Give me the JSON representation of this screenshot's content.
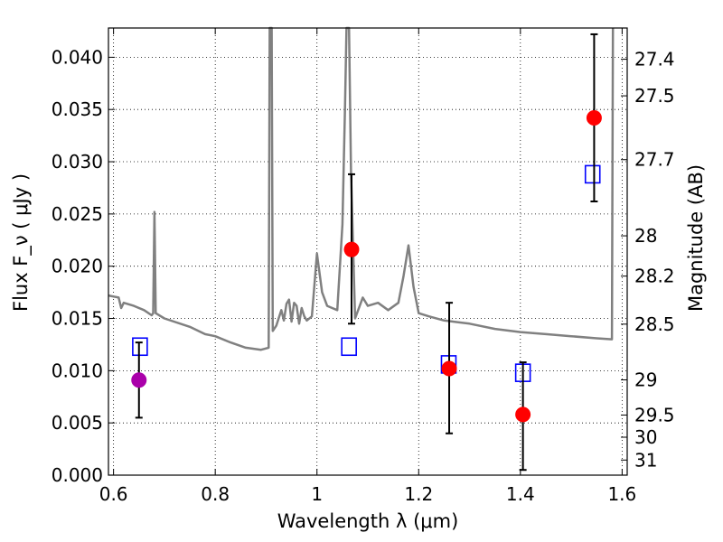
{
  "chart_data": {
    "type": "scatter",
    "title": "",
    "xlabel": "Wavelength  λ (μm)",
    "ylabel": "Flux  F_ν  ( μJy )",
    "y2label": "Magnitude (AB)",
    "xlim": [
      0.59,
      1.61
    ],
    "ylim": [
      0.0,
      0.0428
    ],
    "grid": true,
    "xticks": [
      0.6,
      0.8,
      1.0,
      1.2,
      1.4,
      1.6
    ],
    "xtick_labels": [
      "0.6",
      "0.8",
      "1",
      "1.2",
      "1.4",
      "1.6"
    ],
    "yticks": [
      0.0,
      0.005,
      0.01,
      0.015,
      0.02,
      0.025,
      0.03,
      0.035,
      0.04
    ],
    "ytick_labels": [
      "0.000",
      "0.005",
      "0.010",
      "0.015",
      "0.020",
      "0.025",
      "0.030",
      "0.035",
      "0.040"
    ],
    "mag_ticks": [
      27.4,
      27.5,
      27.7,
      28,
      28.2,
      28.5,
      29,
      29.5,
      30,
      31
    ],
    "mag_tick_labels": [
      "27.4",
      "27.5",
      "27.7",
      "28",
      "28.2",
      "28.5",
      "29",
      "29.5",
      "30",
      "31"
    ],
    "series": [
      {
        "type": "line",
        "color": "#808080",
        "points": [
          [
            0.59,
            0.0172
          ],
          [
            0.61,
            0.017
          ],
          [
            0.615,
            0.016
          ],
          [
            0.62,
            0.0165
          ],
          [
            0.64,
            0.0162
          ],
          [
            0.66,
            0.0158
          ],
          [
            0.675,
            0.0153
          ],
          [
            0.678,
            0.0155
          ],
          [
            0.6805,
            0.0252
          ],
          [
            0.683,
            0.0155
          ],
          [
            0.7,
            0.015
          ],
          [
            0.75,
            0.0142
          ],
          [
            0.78,
            0.0135
          ],
          [
            0.8,
            0.0133
          ],
          [
            0.83,
            0.0127
          ],
          [
            0.86,
            0.0122
          ],
          [
            0.89,
            0.012
          ],
          [
            0.905,
            0.0122
          ],
          [
            0.907,
            0.0428
          ],
          [
            0.911,
            0.0428
          ],
          [
            0.913,
            0.0138
          ],
          [
            0.92,
            0.0143
          ],
          [
            0.93,
            0.0158
          ],
          [
            0.935,
            0.0148
          ],
          [
            0.94,
            0.0164
          ],
          [
            0.945,
            0.0168
          ],
          [
            0.95,
            0.0147
          ],
          [
            0.955,
            0.0165
          ],
          [
            0.96,
            0.0162
          ],
          [
            0.965,
            0.0145
          ],
          [
            0.97,
            0.016
          ],
          [
            0.975,
            0.0152
          ],
          [
            0.98,
            0.0148
          ],
          [
            0.99,
            0.0152
          ],
          [
            1.0,
            0.0212
          ],
          [
            1.01,
            0.0175
          ],
          [
            1.02,
            0.0162
          ],
          [
            1.03,
            0.016
          ],
          [
            1.04,
            0.0158
          ],
          [
            1.05,
            0.024
          ],
          [
            1.055,
            0.035
          ],
          [
            1.058,
            0.0428
          ],
          [
            1.063,
            0.0428
          ],
          [
            1.067,
            0.029
          ],
          [
            1.075,
            0.015
          ],
          [
            1.09,
            0.017
          ],
          [
            1.1,
            0.0162
          ],
          [
            1.12,
            0.0165
          ],
          [
            1.14,
            0.0158
          ],
          [
            1.16,
            0.0165
          ],
          [
            1.17,
            0.019
          ],
          [
            1.18,
            0.022
          ],
          [
            1.19,
            0.018
          ],
          [
            1.2,
            0.0155
          ],
          [
            1.22,
            0.0152
          ],
          [
            1.25,
            0.0148
          ],
          [
            1.3,
            0.0145
          ],
          [
            1.35,
            0.014
          ],
          [
            1.4,
            0.0137
          ],
          [
            1.45,
            0.0135
          ],
          [
            1.5,
            0.0133
          ],
          [
            1.55,
            0.0131
          ],
          [
            1.58,
            0.013
          ],
          [
            1.582,
            0.0428
          ]
        ]
      },
      {
        "type": "points",
        "marker": "square",
        "color": "#0000ff",
        "points": [
          [
            0.652,
            0.0123
          ],
          [
            1.063,
            0.0123
          ],
          [
            1.259,
            0.0106
          ],
          [
            1.405,
            0.0098
          ],
          [
            1.542,
            0.0288
          ]
        ]
      },
      {
        "type": "points",
        "marker": "circle",
        "color": "#ff0000",
        "points": [
          [
            1.068,
            0.0216,
            0.0145,
            0.0288
          ],
          [
            1.26,
            0.0102,
            0.004,
            0.0165
          ],
          [
            1.405,
            0.0058,
            0.0005,
            0.0108
          ],
          [
            1.545,
            0.0342,
            0.0262,
            0.0422
          ]
        ]
      },
      {
        "type": "points",
        "marker": "circle",
        "color": "#aa00aa",
        "points": [
          [
            0.65,
            0.0091,
            0.0055,
            0.0127
          ]
        ]
      }
    ]
  }
}
